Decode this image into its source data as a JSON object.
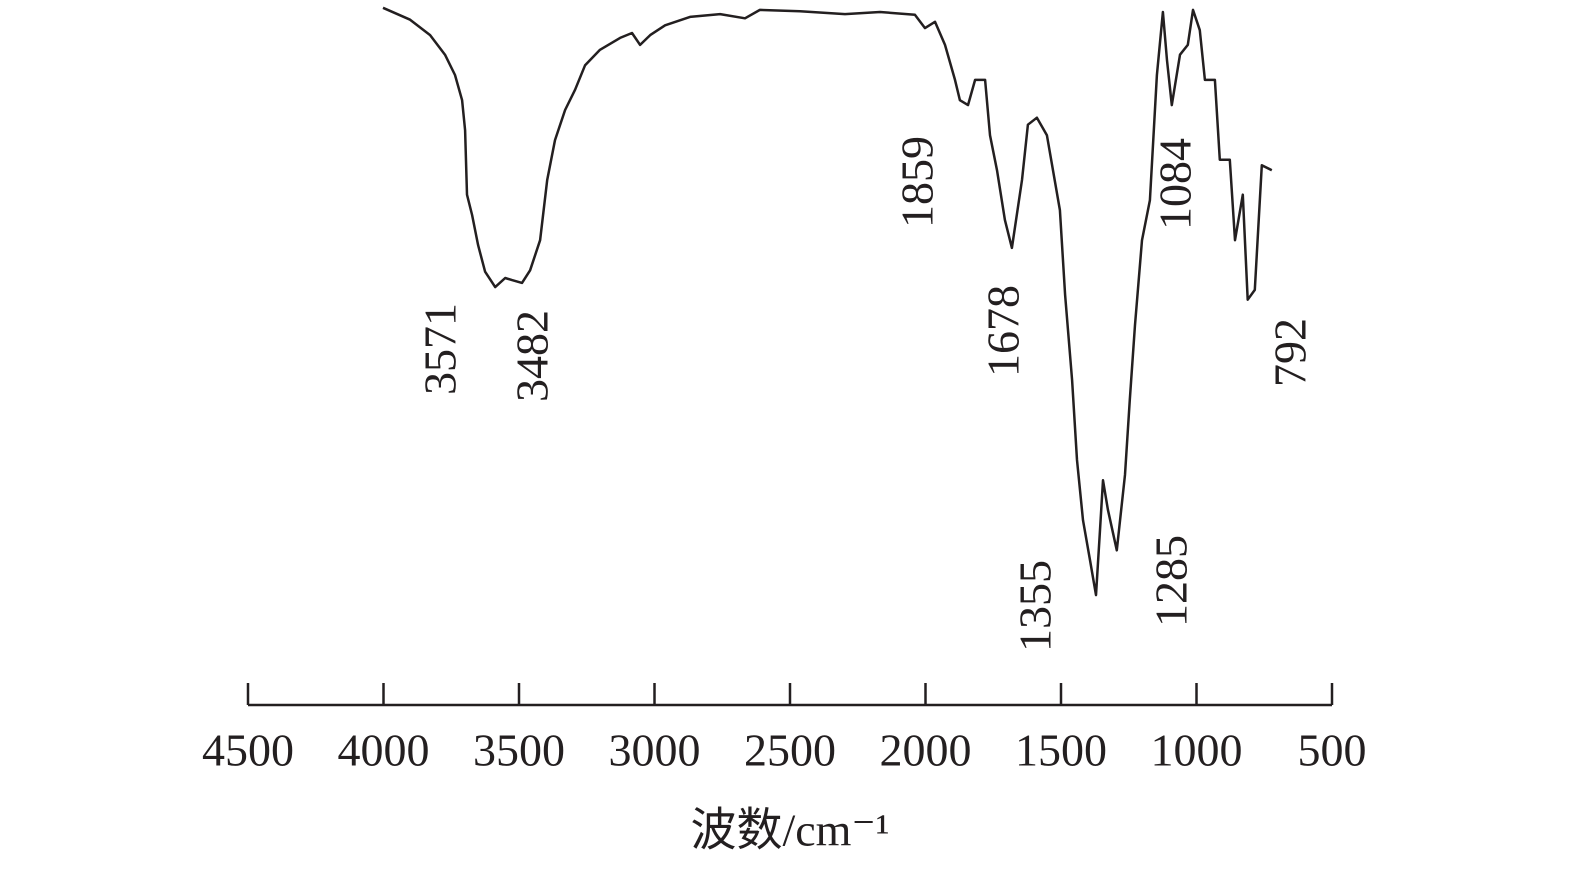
{
  "chart_data": {
    "type": "line",
    "xlabel": "波数/cm⁻¹",
    "color": "#231f20",
    "xlim": [
      4500,
      500
    ],
    "xticks": [
      4500,
      4000,
      3500,
      3000,
      2500,
      2000,
      1500,
      1000,
      500
    ],
    "ylim": [
      0,
      100
    ],
    "x": [
      4002,
      3902,
      3828,
      3773,
      3736,
      3710,
      3699,
      3692,
      3673,
      3651,
      3625,
      3588,
      3551,
      3526,
      3489,
      3459,
      3422,
      3396,
      3367,
      3330,
      3293,
      3256,
      3201,
      3127,
      3083,
      3053,
      3016,
      2961,
      2869,
      2758,
      2666,
      2611,
      2463,
      2297,
      2168,
      2039,
      2002,
      1965,
      1928,
      1891,
      1873,
      1843,
      1817,
      1780,
      1762,
      1736,
      1707,
      1681,
      1644,
      1622,
      1589,
      1552,
      1504,
      1485,
      1459,
      1441,
      1419,
      1393,
      1371,
      1356,
      1345,
      1327,
      1294,
      1264,
      1246,
      1227,
      1201,
      1172,
      1146,
      1124,
      1109,
      1091,
      1061,
      1032,
      1013,
      988,
      969,
      932,
      914,
      877,
      858,
      829,
      811,
      785,
      759,
      722
    ],
    "values": [
      99.6,
      97.9,
      95.7,
      92.9,
      90.0,
      86.4,
      82.1,
      72.9,
      70.0,
      65.7,
      61.9,
      59.7,
      61.0,
      60.7,
      60.3,
      62.1,
      66.4,
      75.0,
      80.7,
      85.0,
      87.9,
      91.4,
      93.6,
      95.3,
      96.0,
      94.3,
      95.7,
      97.1,
      98.3,
      98.7,
      98.1,
      99.3,
      99.1,
      98.7,
      99.0,
      98.6,
      96.7,
      97.6,
      94.3,
      89.3,
      86.4,
      85.7,
      89.3,
      89.3,
      81.4,
      76.4,
      69.3,
      65.3,
      75.0,
      82.9,
      83.9,
      81.4,
      70.7,
      58.6,
      46.4,
      35.0,
      26.4,
      20.7,
      15.7,
      25.0,
      32.1,
      27.9,
      22.1,
      32.9,
      43.6,
      54.3,
      66.4,
      72.1,
      90.0,
      99.0,
      92.1,
      85.7,
      92.9,
      94.3,
      99.3,
      96.4,
      89.3,
      89.3,
      77.9,
      77.9,
      66.4,
      72.9,
      57.9,
      59.3,
      77.1,
      76.4
    ],
    "annotations": [
      3571,
      3482,
      1859,
      1678,
      1355,
      1285,
      1084,
      792
    ]
  }
}
